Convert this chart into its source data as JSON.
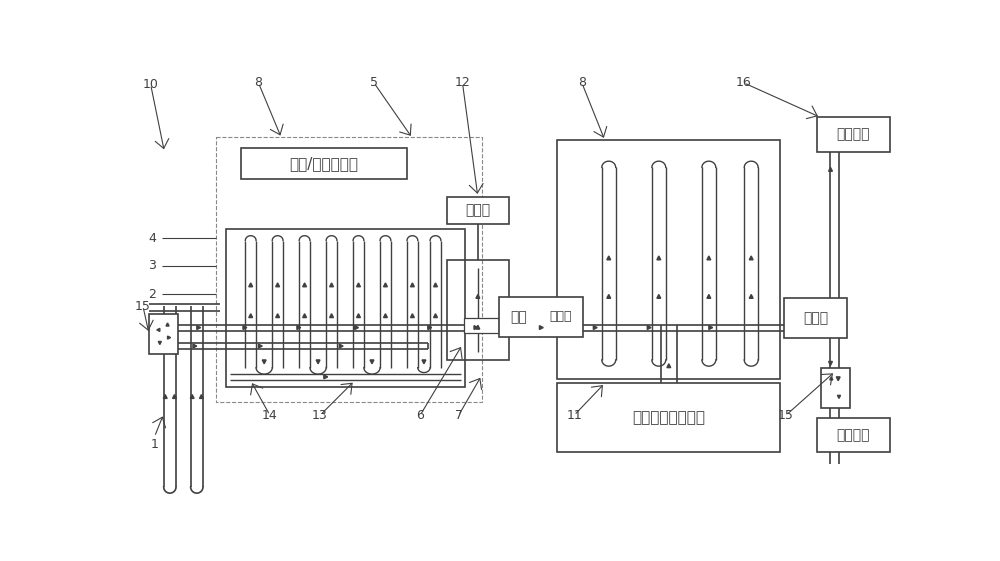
{
  "bg_color": "#ffffff",
  "lc": "#404040",
  "labels": {
    "jire_sanre": "集热/散热两用板",
    "sanneng": "散能片",
    "rebeng": "热泵",
    "huanneng_mid": "换能器",
    "ranqi": "燃气能源补充装置",
    "shangji": "上级用户",
    "xiaji": "下级用户",
    "huanneng_right": "换能器"
  }
}
